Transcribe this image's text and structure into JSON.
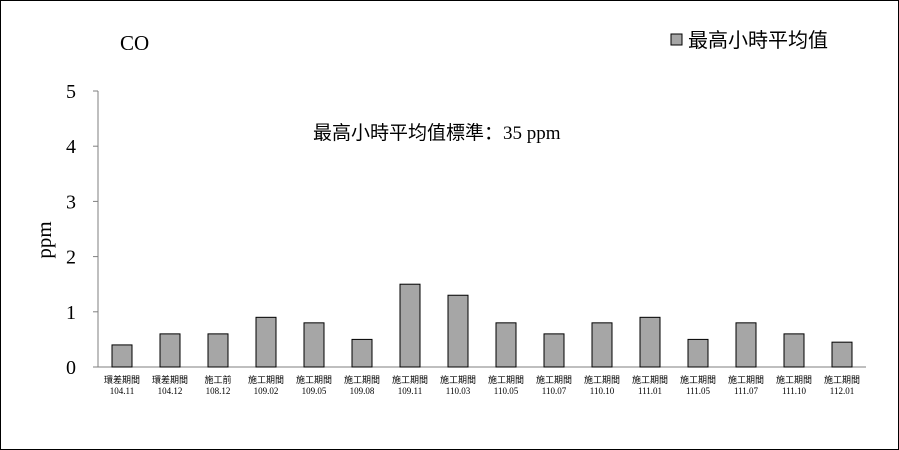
{
  "chart_data": {
    "type": "bar",
    "title": "CO",
    "ylabel": "ppm",
    "xlabel": "",
    "annotation": "最高小時平均值標準：35 ppm",
    "legend": {
      "position": "top-right",
      "entries": [
        "最高小時平均值"
      ]
    },
    "ylim": [
      0,
      5
    ],
    "yticks": [
      0,
      1,
      2,
      3,
      4,
      5
    ],
    "grid": false,
    "categories": [
      [
        "環差期間",
        "104.11"
      ],
      [
        "環差期間",
        "104.12"
      ],
      [
        "施工前",
        "108.12"
      ],
      [
        "施工期間",
        "109.02"
      ],
      [
        "施工期間",
        "109.05"
      ],
      [
        "施工期間",
        "109.08"
      ],
      [
        "施工期間",
        "109.11"
      ],
      [
        "施工期間",
        "110.03"
      ],
      [
        "施工期間",
        "110.05"
      ],
      [
        "施工期間",
        "110.07"
      ],
      [
        "施工期間",
        "110.10"
      ],
      [
        "施工期間",
        "111.01"
      ],
      [
        "施工期間",
        "111.05"
      ],
      [
        "施工期間",
        "111.07"
      ],
      [
        "施工期間",
        "111.10"
      ],
      [
        "施工期間",
        "112.01"
      ]
    ],
    "series": [
      {
        "name": "最高小時平均值",
        "color": "#a6a6a6",
        "values": [
          0.4,
          0.6,
          0.6,
          0.9,
          0.8,
          0.5,
          1.5,
          1.3,
          0.8,
          0.6,
          0.8,
          0.9,
          0.5,
          0.8,
          0.6,
          0.45
        ]
      }
    ]
  }
}
